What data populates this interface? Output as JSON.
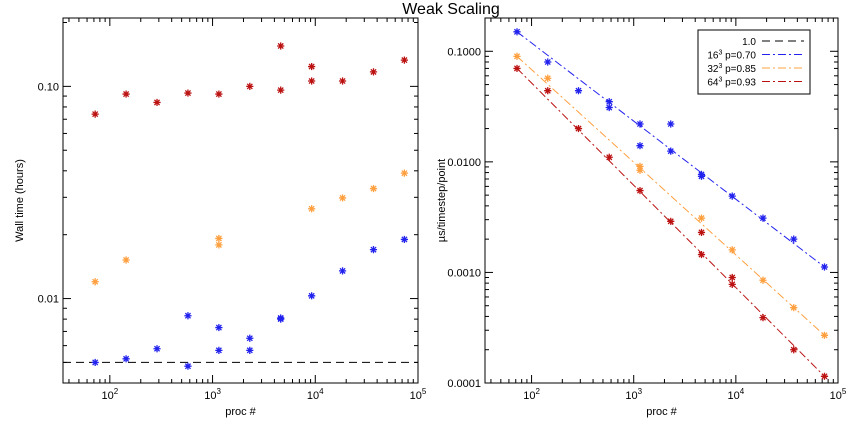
{
  "figure_title": "Weak Scaling",
  "chart_data": [
    {
      "type": "scatter",
      "xscale": "log",
      "yscale": "log",
      "xlim": [
        35,
        100000
      ],
      "ylim": [
        0.004,
        0.21
      ],
      "xlabel": "proc #",
      "ylabel": "Wall time (hours)",
      "xticks": [
        {
          "v": 100,
          "base": "10",
          "exp": "2"
        },
        {
          "v": 1000,
          "base": "10",
          "exp": "3"
        },
        {
          "v": 10000,
          "base": "10",
          "exp": "4"
        },
        {
          "v": 100000,
          "base": "10",
          "exp": "5"
        }
      ],
      "yticks": [
        {
          "v": 0.01,
          "label": "0.01"
        },
        {
          "v": 0.1,
          "label": "0.10"
        }
      ],
      "reference_line": {
        "y": 0.005,
        "color": "#000000",
        "dash": "dashed"
      },
      "series": [
        {
          "color": "#2222ee",
          "points": [
            [
              72,
              0.005
            ],
            [
              144,
              0.0052
            ],
            [
              288,
              0.0058
            ],
            [
              576,
              0.0048
            ],
            [
              576,
              0.0083
            ],
            [
              1152,
              0.0057
            ],
            [
              1152,
              0.0073
            ],
            [
              2304,
              0.0057
            ],
            [
              2304,
              0.0065
            ],
            [
              4608,
              0.008
            ],
            [
              4608,
              0.0081
            ],
            [
              9216,
              0.0103
            ],
            [
              18432,
              0.0135
            ],
            [
              36864,
              0.017
            ],
            [
              73728,
              0.019
            ]
          ]
        },
        {
          "color": "#ffa040",
          "points": [
            [
              72,
              0.012
            ],
            [
              144,
              0.0152
            ],
            [
              1152,
              0.0179
            ],
            [
              1152,
              0.0192
            ],
            [
              9216,
              0.0265
            ],
            [
              18432,
              0.0298
            ],
            [
              36864,
              0.033
            ],
            [
              73728,
              0.039
            ]
          ]
        },
        {
          "color": "#bb1111",
          "points": [
            [
              72,
              0.074
            ],
            [
              144,
              0.092
            ],
            [
              288,
              0.084
            ],
            [
              576,
              0.093
            ],
            [
              1152,
              0.092
            ],
            [
              2304,
              0.1
            ],
            [
              4608,
              0.096
            ],
            [
              4608,
              0.155
            ],
            [
              9216,
              0.106
            ],
            [
              9216,
              0.124
            ],
            [
              18432,
              0.106
            ],
            [
              36864,
              0.117
            ],
            [
              73728,
              0.133
            ]
          ]
        }
      ]
    },
    {
      "type": "scatter",
      "xscale": "log",
      "yscale": "log",
      "xlim": [
        35,
        100000
      ],
      "ylim": [
        0.0001,
        0.2
      ],
      "xlabel": "proc #",
      "ylabel": "µs/timestep/point",
      "xticks": [
        {
          "v": 100,
          "base": "10",
          "exp": "2"
        },
        {
          "v": 1000,
          "base": "10",
          "exp": "3"
        },
        {
          "v": 10000,
          "base": "10",
          "exp": "4"
        },
        {
          "v": 100000,
          "base": "10",
          "exp": "5"
        }
      ],
      "yticks": [
        {
          "v": 0.0001,
          "label": "0.0001"
        },
        {
          "v": 0.001,
          "label": "0.0010"
        },
        {
          "v": 0.01,
          "label": "0.0100"
        },
        {
          "v": 0.1,
          "label": "0.1000"
        }
      ],
      "legend": {
        "placement": "top-right"
      },
      "series": [
        {
          "name": "1.0",
          "color": "#000000",
          "dash": "dashed",
          "line_only": true,
          "points": []
        },
        {
          "name_base": "16",
          "name_sup": "3",
          "name_rest": " p=0.70",
          "color": "#2222ee",
          "dash": "dashdot",
          "fit": [
            [
              72,
              0.15
            ],
            [
              73728,
              0.00112
            ]
          ],
          "points": [
            [
              72,
              0.15
            ],
            [
              144,
              0.08
            ],
            [
              288,
              0.044
            ],
            [
              576,
              0.035
            ],
            [
              576,
              0.031
            ],
            [
              1152,
              0.022
            ],
            [
              1152,
              0.014
            ],
            [
              2304,
              0.022
            ],
            [
              2304,
              0.0125
            ],
            [
              4608,
              0.0077
            ],
            [
              4608,
              0.0074
            ],
            [
              9216,
              0.0049
            ],
            [
              18432,
              0.0031
            ],
            [
              36864,
              0.002
            ],
            [
              73728,
              0.00112
            ]
          ]
        },
        {
          "name_base": "32",
          "name_sup": "3",
          "name_rest": " p=0.85",
          "color": "#ffa040",
          "dash": "dashdot",
          "fit": [
            [
              72,
              0.09
            ],
            [
              73728,
              0.00027
            ]
          ],
          "points": [
            [
              72,
              0.09
            ],
            [
              144,
              0.057
            ],
            [
              1152,
              0.0091
            ],
            [
              1152,
              0.0084
            ],
            [
              4608,
              0.0031
            ],
            [
              9216,
              0.0016
            ],
            [
              18432,
              0.00085
            ],
            [
              36864,
              0.00048
            ],
            [
              73728,
              0.00027
            ]
          ]
        },
        {
          "name_base": "64",
          "name_sup": "3",
          "name_rest": " p=0.93",
          "color": "#bb1111",
          "dash": "dashdot",
          "fit": [
            [
              72,
              0.07
            ],
            [
              73728,
              0.000115
            ]
          ],
          "points": [
            [
              72,
              0.07
            ],
            [
              144,
              0.044
            ],
            [
              288,
              0.02
            ],
            [
              576,
              0.011
            ],
            [
              1152,
              0.0055
            ],
            [
              2304,
              0.0029
            ],
            [
              4608,
              0.0023
            ],
            [
              4608,
              0.00145
            ],
            [
              9216,
              0.0009
            ],
            [
              9216,
              0.00078
            ],
            [
              18432,
              0.00039
            ],
            [
              36864,
              0.0002
            ],
            [
              73728,
              0.000115
            ]
          ]
        }
      ]
    }
  ]
}
